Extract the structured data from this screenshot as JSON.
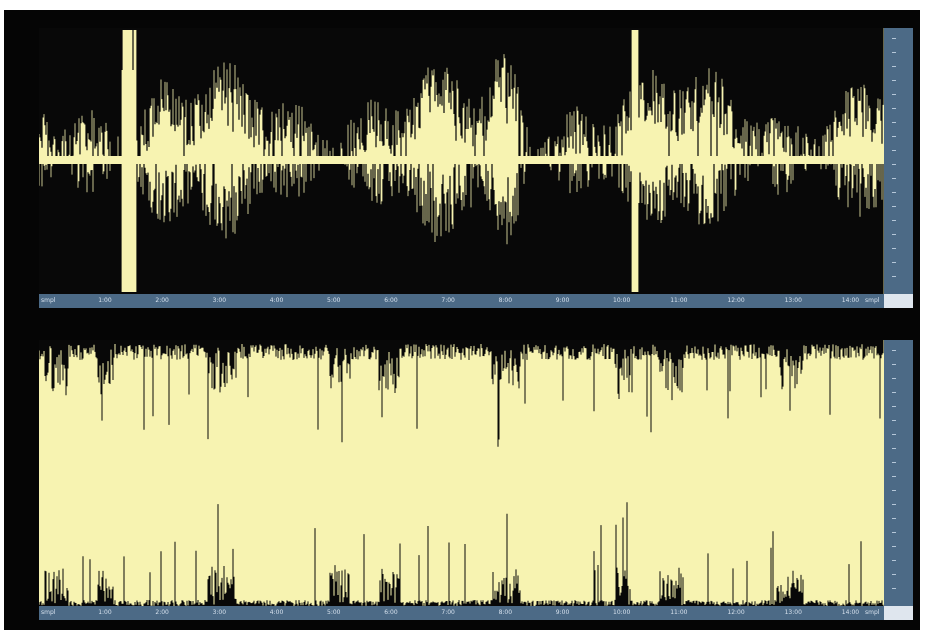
{
  "colors": {
    "background": "#050505",
    "waveform_fill": "#f7f3b1",
    "waveform_ink": "#080808",
    "ruler": "#4c6a86",
    "ruler_text": "#d7e2ee"
  },
  "tracks": [
    {
      "ruler_labels": [
        "smpl",
        "1:00",
        "2:00",
        "3:00",
        "4:00",
        "5:00",
        "6:00",
        "7:00",
        "8:00",
        "9:00",
        "10:00",
        "11:00",
        "12:00",
        "13:00",
        "14:00",
        "smpl"
      ],
      "kind": "dense-waveform"
    },
    {
      "ruler_labels": [
        "smpl",
        "1:00",
        "2:00",
        "3:00",
        "4:00",
        "5:00",
        "6:00",
        "7:00",
        "8:00",
        "9:00",
        "10:00",
        "11:00",
        "12:00",
        "13:00",
        "14:00",
        "smpl"
      ],
      "kind": "sparse-waveform"
    }
  ]
}
